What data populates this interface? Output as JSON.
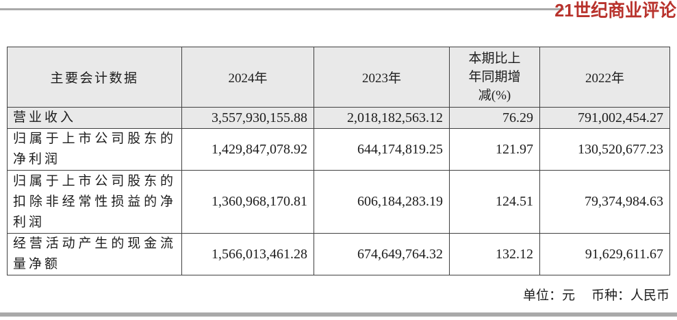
{
  "brand": {
    "logo_text": "21世纪商业评论"
  },
  "colors": {
    "brand_red": "#b8322c",
    "divider_gray": "#a9a9a9",
    "shaded_row_gray": "#e9e9e9",
    "table_border": "#3f3f3f"
  },
  "table": {
    "columns": [
      "主要会计数据",
      "2024年",
      "2023年",
      "本期比上年同期增减(%)",
      "2022年"
    ],
    "rows": [
      {
        "label": "营业收入",
        "y2024": "3,557,930,155.88",
        "y2023": "2,018,182,563.12",
        "change_pct": "76.29",
        "y2022": "791,002,454.27"
      },
      {
        "label": "归属于上市公司股东的净利润",
        "y2024": "1,429,847,078.92",
        "y2023": "644,174,819.25",
        "change_pct": "121.97",
        "y2022": "130,520,677.23"
      },
      {
        "label": "归属于上市公司股东的扣除非经常性损益的净利润",
        "y2024": "1,360,968,170.81",
        "y2023": "606,184,283.19",
        "change_pct": "124.51",
        "y2022": "79,374,984.63"
      },
      {
        "label": "经营活动产生的现金流量净额",
        "y2024": "1,566,013,461.28",
        "y2023": "674,649,764.32",
        "change_pct": "132.12",
        "y2022": "91,629,611.67"
      }
    ]
  },
  "footnote": {
    "unit": "单位：元",
    "currency": "币种：人民币"
  }
}
